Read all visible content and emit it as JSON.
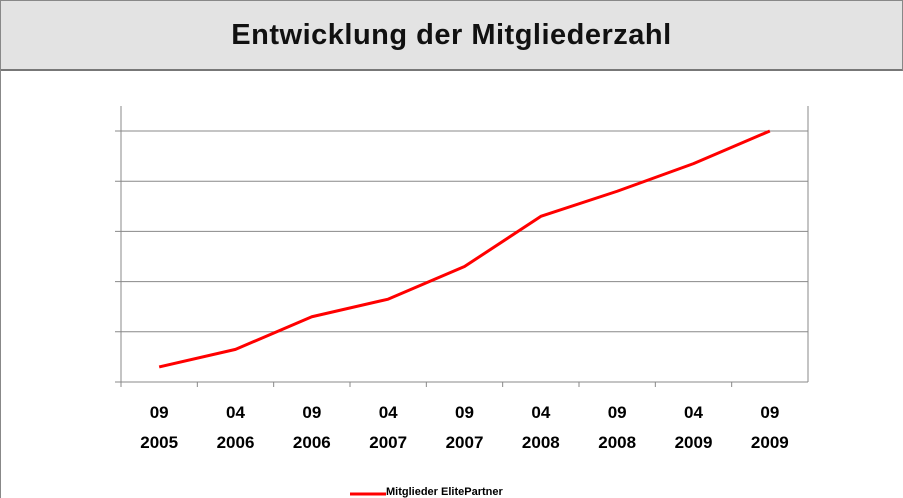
{
  "chart_data": {
    "type": "line",
    "title": "Entwicklung der Mitgliederzahl",
    "categories": [
      "09\n2005",
      "04\n2006",
      "09\n2006",
      "04\n2007",
      "09\n2007",
      "04\n2008",
      "09\n2008",
      "04\n2009",
      "09\n2009"
    ],
    "series": [
      {
        "name": "Mitglieder ElitePartner",
        "color": "#ff0000",
        "values": [
          0.3,
          0.65,
          1.3,
          1.65,
          2.3,
          3.3,
          3.8,
          4.35,
          5
        ]
      }
    ],
    "ylim": [
      0,
      5
    ],
    "yticks": [
      0,
      1,
      2,
      3,
      4,
      5
    ],
    "grid": true
  }
}
